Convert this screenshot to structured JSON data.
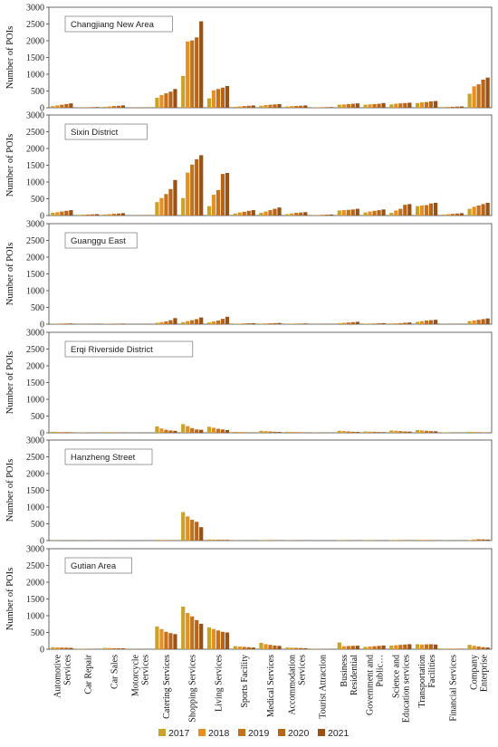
{
  "chart_data": {
    "type": "bar",
    "ylabel": "Number of POIs",
    "ylim": [
      0,
      3000
    ],
    "yticks": [
      0,
      500,
      1000,
      1500,
      2000,
      2500,
      3000
    ],
    "categories": [
      [
        "Automotive",
        "Services"
      ],
      [
        "Car Repair"
      ],
      [
        "Car Sales"
      ],
      [
        "Motorcycle",
        "Services"
      ],
      [
        "Catering Services"
      ],
      [
        "Shopping Services"
      ],
      [
        "Living Services"
      ],
      [
        "Sports Facility"
      ],
      [
        "Medical Services"
      ],
      [
        "Accommodation",
        "Services"
      ],
      [
        "Tourist Attraction"
      ],
      [
        "Business",
        "Residential"
      ],
      [
        "Government and",
        "Public…"
      ],
      [
        "Science and",
        "Education services"
      ],
      [
        "Transportation",
        "Facilities"
      ],
      [
        "Financial Services"
      ],
      [
        "Company",
        "Enterprise"
      ]
    ],
    "series_names": [
      "2017",
      "2018",
      "2019",
      "2020",
      "2021"
    ],
    "colors": [
      "#C9A227",
      "#E8901F",
      "#C4731C",
      "#B8651A",
      "#9A5114"
    ],
    "legend_position": "bottom",
    "panels": [
      {
        "title": "Changjiang New Area",
        "values": [
          [
            50,
            70,
            90,
            110,
            130
          ],
          [
            10,
            12,
            15,
            18,
            20
          ],
          [
            30,
            40,
            50,
            60,
            70
          ],
          [
            5,
            6,
            8,
            10,
            12
          ],
          [
            300,
            380,
            430,
            480,
            560
          ],
          [
            950,
            1980,
            2010,
            2100,
            2580
          ],
          [
            280,
            520,
            560,
            600,
            650
          ],
          [
            30,
            40,
            50,
            60,
            70
          ],
          [
            60,
            80,
            90,
            100,
            110
          ],
          [
            40,
            50,
            55,
            60,
            70
          ],
          [
            10,
            12,
            15,
            18,
            20
          ],
          [
            90,
            100,
            110,
            120,
            130
          ],
          [
            90,
            100,
            110,
            120,
            140
          ],
          [
            100,
            120,
            130,
            140,
            150
          ],
          [
            140,
            160,
            170,
            190,
            200
          ],
          [
            20,
            25,
            30,
            35,
            40
          ],
          [
            420,
            640,
            700,
            840,
            900
          ]
        ]
      },
      {
        "title": "Sixin District",
        "values": [
          [
            80,
            100,
            120,
            140,
            160
          ],
          [
            20,
            25,
            30,
            35,
            40
          ],
          [
            30,
            40,
            50,
            60,
            70
          ],
          [
            5,
            6,
            8,
            10,
            12
          ],
          [
            400,
            520,
            640,
            790,
            1060
          ],
          [
            520,
            1280,
            1520,
            1680,
            1800
          ],
          [
            280,
            620,
            760,
            1240,
            1270
          ],
          [
            60,
            90,
            110,
            140,
            160
          ],
          [
            80,
            120,
            160,
            200,
            240
          ],
          [
            40,
            60,
            80,
            90,
            100
          ],
          [
            10,
            15,
            20,
            25,
            30
          ],
          [
            150,
            160,
            170,
            180,
            200
          ],
          [
            90,
            120,
            140,
            160,
            180
          ],
          [
            80,
            150,
            200,
            320,
            340
          ],
          [
            280,
            300,
            310,
            360,
            380
          ],
          [
            30,
            40,
            50,
            60,
            70
          ],
          [
            200,
            260,
            300,
            340,
            380
          ]
        ]
      },
      {
        "title": "Guanggu East",
        "values": [
          [
            10,
            12,
            15,
            18,
            20
          ],
          [
            5,
            6,
            7,
            8,
            9
          ],
          [
            8,
            10,
            12,
            14,
            16
          ],
          [
            2,
            3,
            4,
            5,
            6
          ],
          [
            40,
            60,
            80,
            120,
            180
          ],
          [
            60,
            90,
            120,
            150,
            200
          ],
          [
            50,
            80,
            110,
            160,
            220
          ],
          [
            10,
            15,
            20,
            25,
            30
          ],
          [
            15,
            20,
            25,
            30,
            35
          ],
          [
            10,
            12,
            15,
            18,
            20
          ],
          [
            4,
            5,
            6,
            7,
            8
          ],
          [
            30,
            40,
            50,
            60,
            70
          ],
          [
            15,
            18,
            20,
            25,
            30
          ],
          [
            20,
            25,
            30,
            40,
            50
          ],
          [
            70,
            90,
            110,
            120,
            130
          ],
          [
            5,
            6,
            7,
            8,
            9
          ],
          [
            90,
            110,
            130,
            150,
            170
          ]
        ]
      },
      {
        "title": "Erqi Riverside District",
        "values": [
          [
            30,
            25,
            20,
            20,
            15
          ],
          [
            10,
            8,
            8,
            6,
            6
          ],
          [
            20,
            18,
            15,
            12,
            10
          ],
          [
            4,
            3,
            3,
            2,
            2
          ],
          [
            190,
            130,
            90,
            70,
            60
          ],
          [
            260,
            200,
            140,
            100,
            90
          ],
          [
            180,
            150,
            120,
            100,
            80
          ],
          [
            30,
            25,
            20,
            15,
            12
          ],
          [
            60,
            50,
            40,
            30,
            25
          ],
          [
            30,
            25,
            20,
            15,
            12
          ],
          [
            8,
            6,
            5,
            4,
            3
          ],
          [
            60,
            50,
            40,
            30,
            25
          ],
          [
            40,
            35,
            30,
            25,
            20
          ],
          [
            70,
            60,
            50,
            40,
            35
          ],
          [
            80,
            70,
            60,
            50,
            45
          ],
          [
            15,
            12,
            10,
            8,
            6
          ],
          [
            30,
            25,
            20,
            15,
            12
          ]
        ]
      },
      {
        "title": "Hanzheng Street",
        "values": [
          [
            6,
            5,
            4,
            4,
            3
          ],
          [
            3,
            3,
            2,
            2,
            2
          ],
          [
            6,
            5,
            4,
            3,
            3
          ],
          [
            2,
            2,
            1,
            1,
            1
          ],
          [
            20,
            18,
            15,
            12,
            10
          ],
          [
            850,
            720,
            620,
            560,
            400
          ],
          [
            30,
            28,
            25,
            22,
            20
          ],
          [
            6,
            5,
            4,
            3,
            3
          ],
          [
            12,
            10,
            9,
            8,
            7
          ],
          [
            8,
            7,
            6,
            5,
            4
          ],
          [
            2,
            2,
            1,
            1,
            1
          ],
          [
            10,
            9,
            8,
            7,
            6
          ],
          [
            10,
            9,
            8,
            7,
            6
          ],
          [
            15,
            12,
            10,
            9,
            8
          ],
          [
            20,
            18,
            16,
            14,
            12
          ],
          [
            4,
            3,
            3,
            2,
            2
          ],
          [
            15,
            30,
            40,
            35,
            30
          ]
        ]
      },
      {
        "title": "Gutian Area",
        "values": [
          [
            60,
            55,
            50,
            45,
            40
          ],
          [
            15,
            12,
            10,
            10,
            8
          ],
          [
            40,
            35,
            30,
            28,
            25
          ],
          [
            8,
            6,
            5,
            5,
            4
          ],
          [
            680,
            600,
            520,
            480,
            450
          ],
          [
            1270,
            1080,
            980,
            870,
            760
          ],
          [
            650,
            600,
            560,
            520,
            500
          ],
          [
            90,
            80,
            70,
            60,
            50
          ],
          [
            190,
            150,
            130,
            110,
            100
          ],
          [
            50,
            45,
            40,
            35,
            30
          ],
          [
            10,
            8,
            7,
            6,
            5
          ],
          [
            200,
            90,
            95,
            100,
            105
          ],
          [
            70,
            80,
            90,
            100,
            110
          ],
          [
            110,
            120,
            130,
            140,
            150
          ],
          [
            150,
            140,
            145,
            150,
            140
          ],
          [
            20,
            18,
            16,
            15,
            14
          ],
          [
            130,
            100,
            80,
            60,
            50
          ]
        ]
      }
    ]
  }
}
